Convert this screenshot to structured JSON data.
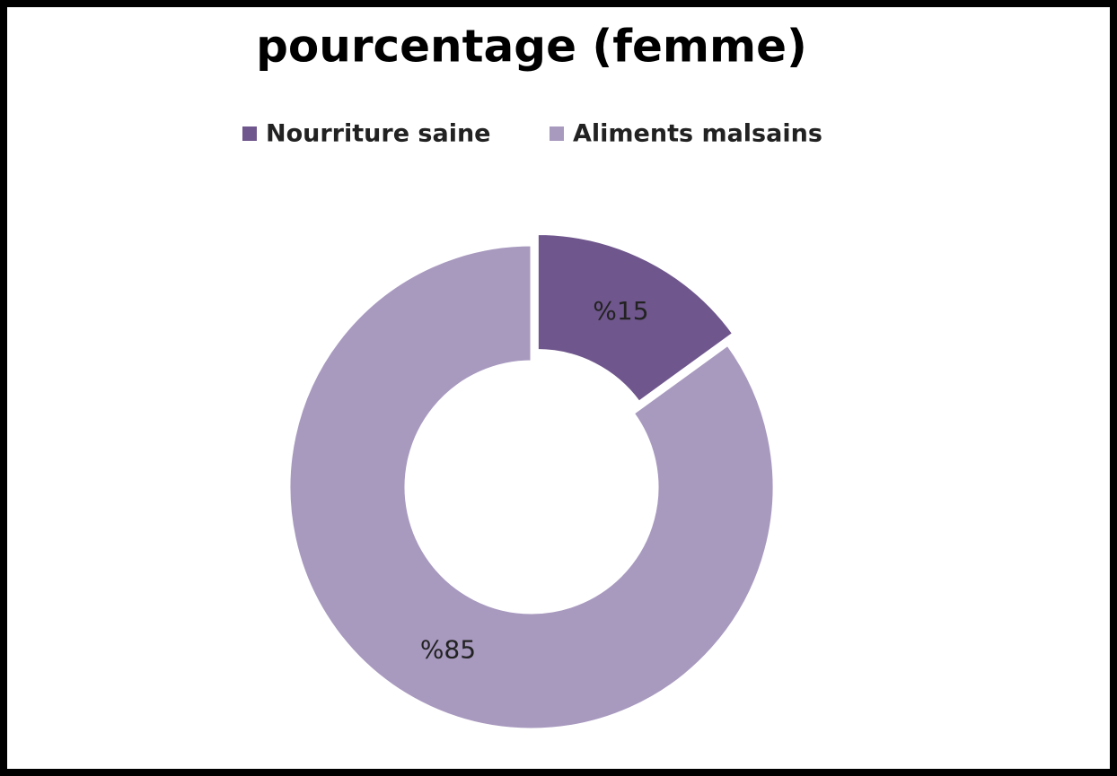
{
  "chart_data": {
    "type": "donut",
    "title": "pourcentage (femme)",
    "categories": [
      "Nourriture saine",
      "Aliments malsains"
    ],
    "values": [
      15,
      85
    ],
    "value_labels": [
      "%15",
      "%85"
    ],
    "colors": [
      "#6f568c",
      "#a899bf"
    ],
    "legend": "top"
  }
}
